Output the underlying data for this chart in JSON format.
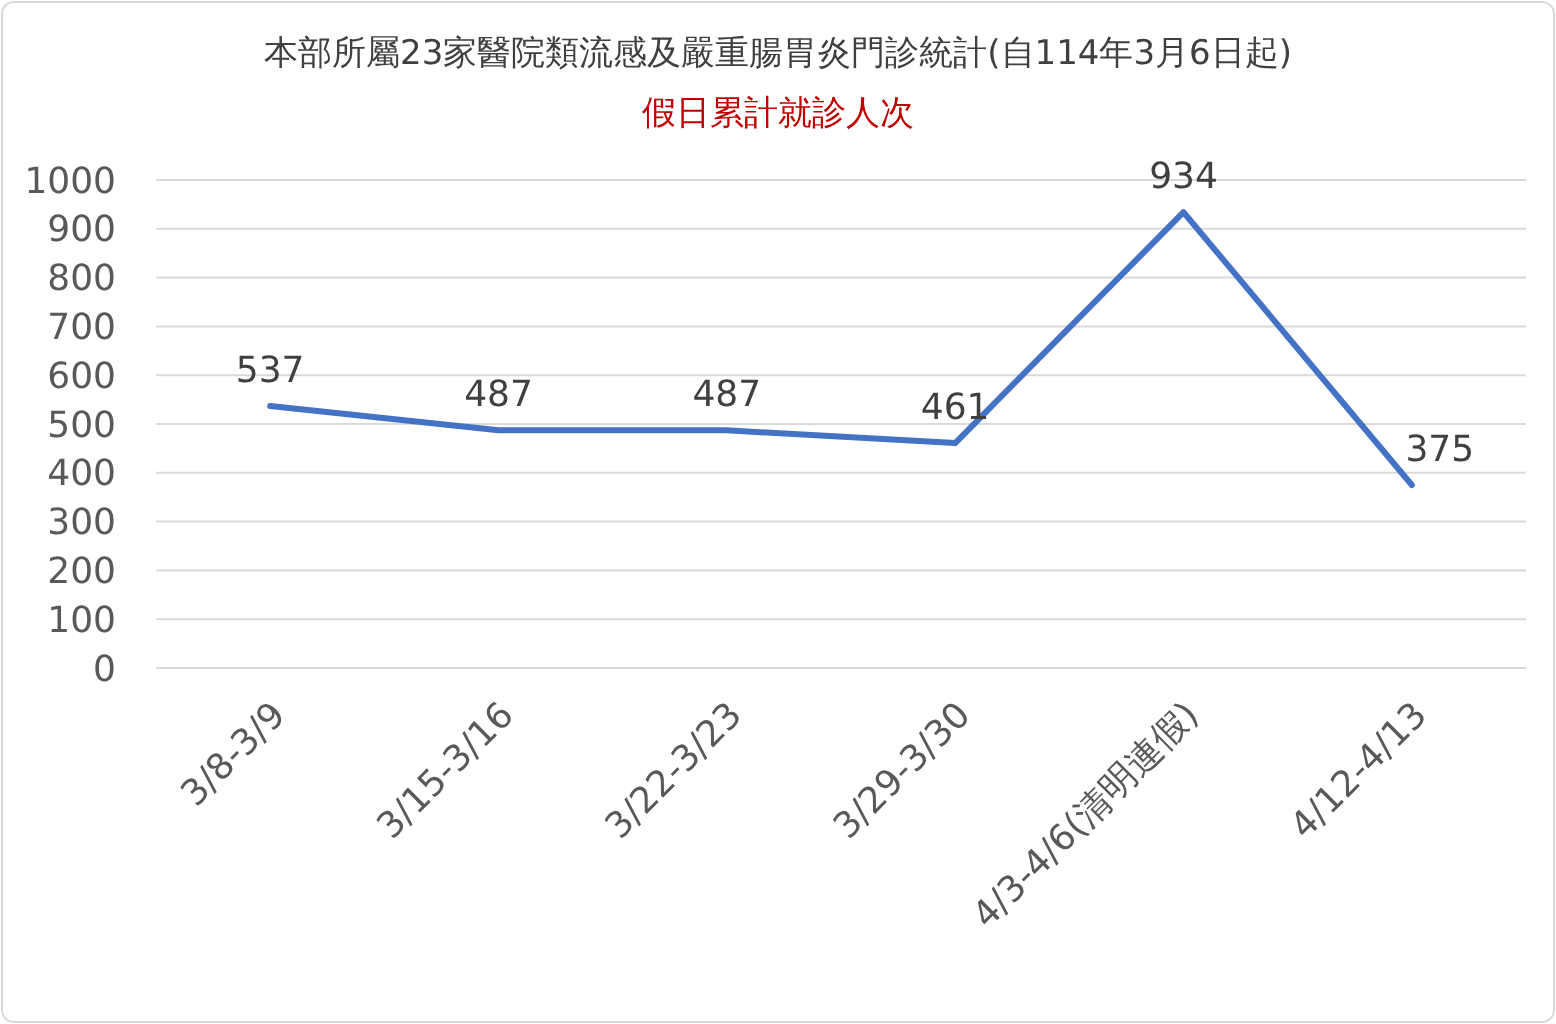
{
  "chart_data": {
    "type": "line",
    "title": "本部所屬23家醫院類流感及嚴重腸胃炎門診統計(自114年3月6日起)",
    "subtitle": "假日累計就診人次",
    "categories": [
      "3/8-3/9",
      "3/15-3/16",
      "3/22-3/23",
      "3/29-3/30",
      "4/3-4/6(清明連假)",
      "4/12-4/13"
    ],
    "series": [
      {
        "color": "#4472c4",
        "values": [
          537,
          487,
          487,
          461,
          934,
          375
        ]
      }
    ],
    "ylim": [
      0,
      1000
    ],
    "yticks": [
      0,
      100,
      200,
      300,
      400,
      500,
      600,
      700,
      800,
      900,
      1000
    ],
    "grid": "y",
    "data_labels": true,
    "marker": "none",
    "line_style": "solid"
  }
}
